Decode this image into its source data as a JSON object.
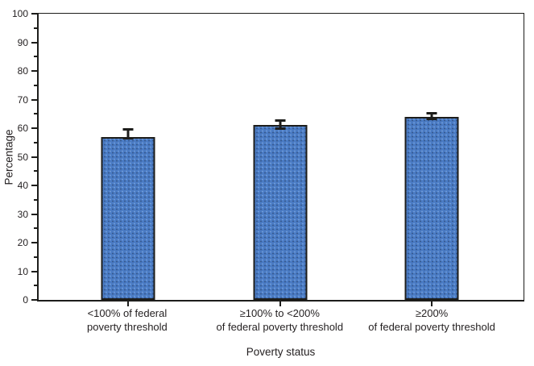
{
  "figure": {
    "background": "#ffffff",
    "text_color": "#231f20",
    "axis_color": "#1d1d1b"
  },
  "chart_data": {
    "type": "bar",
    "title": "",
    "xlabel": "Poverty status",
    "ylabel": "Percentage",
    "ylim": [
      0,
      100
    ],
    "y_major_step": 10,
    "y_minor_step": 5,
    "grid": false,
    "legend": false,
    "bar_color": "#4a7bc4",
    "bar_border_color": "#1d1d1b",
    "bar_centers_pct": [
      18.5,
      49.8,
      81.0
    ],
    "categories": [
      [
        "<100% of federal",
        "poverty threshold"
      ],
      [
        "≥100% to <200%",
        "of federal poverty threshold"
      ],
      [
        "≥200%",
        "of federal poverty threshold"
      ]
    ],
    "values": [
      57,
      61,
      64
    ],
    "error_bars": [
      {
        "low": 56.0,
        "high": 60.0
      },
      {
        "low": 59.3,
        "high": 63.0
      },
      {
        "low": 62.8,
        "high": 65.5
      }
    ]
  }
}
